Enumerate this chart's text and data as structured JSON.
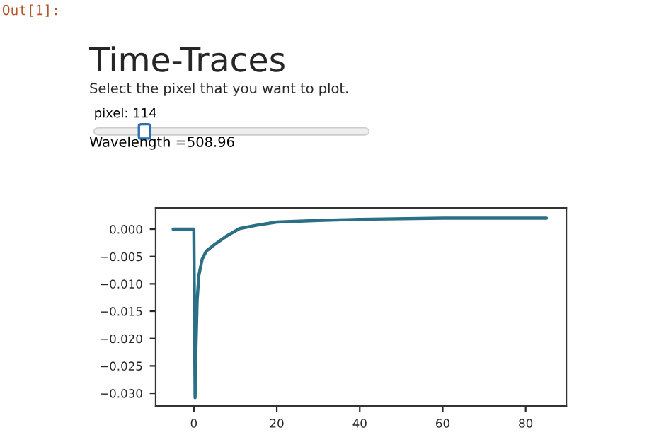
{
  "chart_data": {
    "type": "line",
    "title": "Time-Traces",
    "subtitle": "Select the pixel that you want to plot.",
    "annotations": [
      "Out[1]:",
      "pixel: 114",
      "Wavelength =508.96"
    ],
    "series": [
      {
        "color": "#2a6f85",
        "x": [
          -5,
          0,
          0.3,
          0.5,
          0.8,
          1.2,
          2,
          3,
          5,
          8,
          11,
          15,
          20,
          30,
          40,
          60,
          85
        ],
        "values": [
          0.0,
          0.0,
          -0.0308,
          -0.022,
          -0.013,
          -0.0085,
          -0.0055,
          -0.004,
          -0.0028,
          -0.0012,
          0.0001,
          0.0007,
          0.0013,
          0.0016,
          0.0018,
          0.002,
          0.002
        ]
      }
    ],
    "xlim": [
      -9.2,
      89.8
    ],
    "ylim": [
      -0.0323,
      0.0039
    ],
    "xticks": [
      0,
      20,
      40,
      60,
      80
    ],
    "yticks": [
      {
        "value": 0.0,
        "label": "0.000"
      },
      {
        "value": -0.005,
        "label": "−0.005"
      },
      {
        "value": -0.01,
        "label": "−0.010"
      },
      {
        "value": -0.015,
        "label": "−0.015"
      },
      {
        "value": -0.02,
        "label": "−0.020"
      },
      {
        "value": -0.025,
        "label": "−0.025"
      },
      {
        "value": -0.03,
        "label": "−0.030"
      }
    ],
    "grid": false,
    "legend": false
  }
}
